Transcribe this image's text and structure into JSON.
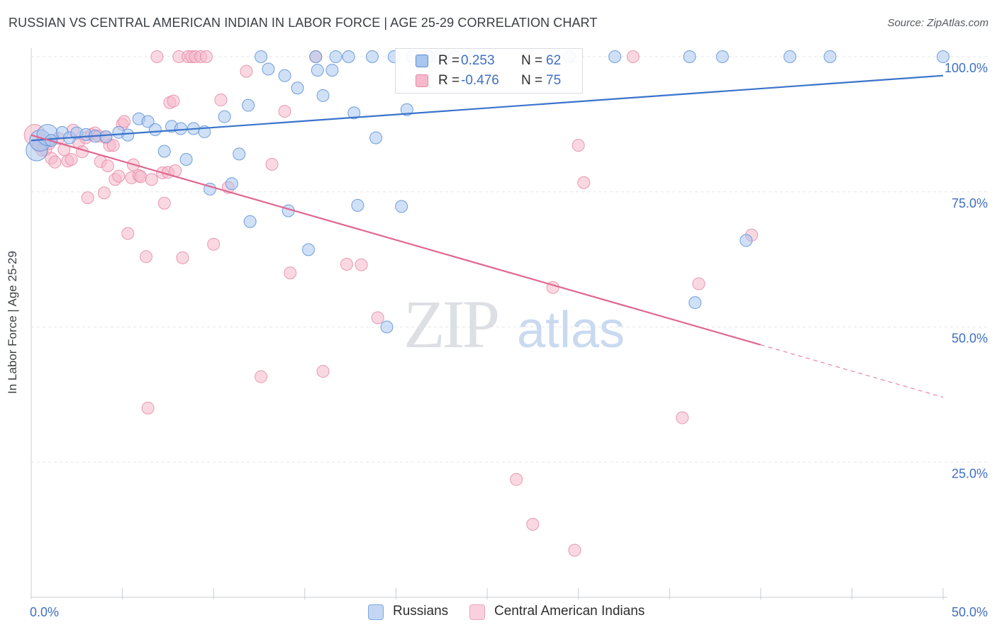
{
  "title": "RUSSIAN VS CENTRAL AMERICAN INDIAN IN LABOR FORCE | AGE 25-29 CORRELATION CHART",
  "source": "Source: ZipAtlas.com",
  "watermark": {
    "zip": "ZIP",
    "atlas": "atlas"
  },
  "colors": {
    "russians_fill": "#a9c6ee",
    "russians_stroke": "#5b8fd6",
    "russians_line": "#3a74cc",
    "cai_fill": "#f6b8cb",
    "cai_stroke": "#e48aa7",
    "cai_line": "#e0668f",
    "tick_label": "#3e6fc4",
    "grid": "#e2e5ea"
  },
  "legend_top": {
    "rows": [
      {
        "r_label": "R =",
        "r_value": "0.253",
        "n_label": "N =",
        "n_value": "62"
      },
      {
        "r_label": "R =",
        "r_value": "-0.476",
        "n_label": "N =",
        "n_value": "75"
      }
    ]
  },
  "legend_bottom": [
    {
      "label": "Russians"
    },
    {
      "label": "Central American Indians"
    }
  ],
  "chart_data": {
    "type": "scatter",
    "title": "RUSSIAN VS CENTRAL AMERICAN INDIAN IN LABOR FORCE | AGE 25-29 CORRELATION CHART",
    "xlabel": "",
    "ylabel": "In Labor Force | Age 25-29",
    "xlim": [
      0,
      50
    ],
    "ylim": [
      0,
      100
    ],
    "x_tick_labels": [
      "0.0%",
      "50.0%"
    ],
    "y_tick_labels": [
      "100.0%",
      "75.0%",
      "50.0%",
      "25.0%"
    ],
    "y_ticks": [
      100,
      75,
      50,
      25
    ],
    "grid": true,
    "legend_position": "bottom",
    "series": [
      {
        "name": "Russians",
        "r": 0.253,
        "n": 62,
        "trend": {
          "x": [
            0,
            50
          ],
          "y": [
            84.5,
            96.5
          ],
          "dashed_from": 50
        },
        "points": [
          {
            "x": 0.3,
            "y": 82.7,
            "s": "l"
          },
          {
            "x": 0.5,
            "y": 84.5,
            "s": "l"
          },
          {
            "x": 0.9,
            "y": 85.5,
            "s": "l"
          },
          {
            "x": 1.1,
            "y": 84.5
          },
          {
            "x": 1.7,
            "y": 86.0
          },
          {
            "x": 2.1,
            "y": 85.0
          },
          {
            "x": 2.5,
            "y": 85.9
          },
          {
            "x": 3.0,
            "y": 85.6
          },
          {
            "x": 3.5,
            "y": 85.3
          },
          {
            "x": 4.1,
            "y": 85.2
          },
          {
            "x": 4.8,
            "y": 86.0
          },
          {
            "x": 5.3,
            "y": 85.5
          },
          {
            "x": 5.9,
            "y": 88.5
          },
          {
            "x": 6.4,
            "y": 88.0
          },
          {
            "x": 6.8,
            "y": 86.5
          },
          {
            "x": 7.3,
            "y": 82.5
          },
          {
            "x": 7.7,
            "y": 87.1
          },
          {
            "x": 8.2,
            "y": 86.7
          },
          {
            "x": 8.5,
            "y": 81.0
          },
          {
            "x": 8.9,
            "y": 86.7
          },
          {
            "x": 9.5,
            "y": 86.1
          },
          {
            "x": 9.8,
            "y": 75.5
          },
          {
            "x": 10.6,
            "y": 88.9
          },
          {
            "x": 11.0,
            "y": 76.5
          },
          {
            "x": 11.4,
            "y": 82.0
          },
          {
            "x": 11.9,
            "y": 91.0
          },
          {
            "x": 12.0,
            "y": 69.5
          },
          {
            "x": 12.6,
            "y": 100
          },
          {
            "x": 13.0,
            "y": 97.7
          },
          {
            "x": 13.9,
            "y": 96.5
          },
          {
            "x": 14.1,
            "y": 71.5
          },
          {
            "x": 14.6,
            "y": 94.2
          },
          {
            "x": 15.2,
            "y": 64.3
          },
          {
            "x": 15.6,
            "y": 100
          },
          {
            "x": 15.7,
            "y": 97.5
          },
          {
            "x": 16.0,
            "y": 92.8
          },
          {
            "x": 16.5,
            "y": 97.5
          },
          {
            "x": 16.7,
            "y": 100
          },
          {
            "x": 17.4,
            "y": 100
          },
          {
            "x": 17.7,
            "y": 89.6
          },
          {
            "x": 17.9,
            "y": 72.5
          },
          {
            "x": 18.7,
            "y": 100
          },
          {
            "x": 18.9,
            "y": 85.0
          },
          {
            "x": 19.5,
            "y": 50.0
          },
          {
            "x": 19.9,
            "y": 100
          },
          {
            "x": 20.3,
            "y": 72.3
          },
          {
            "x": 20.6,
            "y": 90.2
          },
          {
            "x": 20.9,
            "y": 100
          },
          {
            "x": 21.3,
            "y": 95.7
          },
          {
            "x": 21.8,
            "y": 100
          },
          {
            "x": 22.3,
            "y": 100
          },
          {
            "x": 23.2,
            "y": 100
          },
          {
            "x": 24.1,
            "y": 100
          },
          {
            "x": 29.5,
            "y": 100
          },
          {
            "x": 32.0,
            "y": 100
          },
          {
            "x": 36.1,
            "y": 100
          },
          {
            "x": 36.4,
            "y": 54.5
          },
          {
            "x": 37.9,
            "y": 100
          },
          {
            "x": 41.6,
            "y": 100
          },
          {
            "x": 43.8,
            "y": 100
          },
          {
            "x": 39.2,
            "y": 66.0
          },
          {
            "x": 50.0,
            "y": 100
          }
        ]
      },
      {
        "name": "Central American Indians",
        "r": -0.476,
        "n": 75,
        "trend": {
          "x": [
            0,
            50
          ],
          "y": [
            85.5,
            37.0
          ],
          "dashed_from": 40
        },
        "points": [
          {
            "x": 0.2,
            "y": 85.5,
            "s": "l"
          },
          {
            "x": 0.4,
            "y": 83.5
          },
          {
            "x": 0.6,
            "y": 82.7
          },
          {
            "x": 0.8,
            "y": 82.8
          },
          {
            "x": 1.0,
            "y": 84.0
          },
          {
            "x": 1.1,
            "y": 81.2
          },
          {
            "x": 1.3,
            "y": 80.5
          },
          {
            "x": 1.5,
            "y": 84.9
          },
          {
            "x": 1.8,
            "y": 82.8
          },
          {
            "x": 2.0,
            "y": 80.7
          },
          {
            "x": 2.2,
            "y": 81.0
          },
          {
            "x": 2.3,
            "y": 86.4
          },
          {
            "x": 2.6,
            "y": 84.2
          },
          {
            "x": 2.8,
            "y": 82.4
          },
          {
            "x": 3.0,
            "y": 85.0
          },
          {
            "x": 3.1,
            "y": 73.9
          },
          {
            "x": 3.3,
            "y": 85.6
          },
          {
            "x": 3.5,
            "y": 85.9
          },
          {
            "x": 3.7,
            "y": 85.3
          },
          {
            "x": 3.8,
            "y": 80.6
          },
          {
            "x": 4.0,
            "y": 74.8
          },
          {
            "x": 4.1,
            "y": 85.0
          },
          {
            "x": 4.2,
            "y": 79.8
          },
          {
            "x": 4.3,
            "y": 83.6
          },
          {
            "x": 4.5,
            "y": 83.6
          },
          {
            "x": 4.6,
            "y": 77.3
          },
          {
            "x": 4.8,
            "y": 77.9
          },
          {
            "x": 5.0,
            "y": 87.5
          },
          {
            "x": 5.1,
            "y": 88.0
          },
          {
            "x": 5.3,
            "y": 67.3
          },
          {
            "x": 5.5,
            "y": 77.6
          },
          {
            "x": 5.6,
            "y": 80.0
          },
          {
            "x": 5.9,
            "y": 78.0
          },
          {
            "x": 6.0,
            "y": 77.8
          },
          {
            "x": 6.3,
            "y": 63.0
          },
          {
            "x": 6.4,
            "y": 35.0
          },
          {
            "x": 6.6,
            "y": 77.3
          },
          {
            "x": 6.9,
            "y": 100
          },
          {
            "x": 7.2,
            "y": 78.5
          },
          {
            "x": 7.3,
            "y": 72.9
          },
          {
            "x": 7.5,
            "y": 78.6
          },
          {
            "x": 7.6,
            "y": 91.5
          },
          {
            "x": 7.8,
            "y": 91.8
          },
          {
            "x": 7.9,
            "y": 78.9
          },
          {
            "x": 8.1,
            "y": 100
          },
          {
            "x": 8.3,
            "y": 62.8
          },
          {
            "x": 8.6,
            "y": 100
          },
          {
            "x": 8.8,
            "y": 100
          },
          {
            "x": 9.0,
            "y": 100
          },
          {
            "x": 9.3,
            "y": 100
          },
          {
            "x": 9.6,
            "y": 100
          },
          {
            "x": 10.0,
            "y": 65.3
          },
          {
            "x": 10.4,
            "y": 92.0
          },
          {
            "x": 10.8,
            "y": 75.8
          },
          {
            "x": 11.8,
            "y": 97.3
          },
          {
            "x": 12.6,
            "y": 40.8
          },
          {
            "x": 13.2,
            "y": 80.1
          },
          {
            "x": 13.9,
            "y": 89.9
          },
          {
            "x": 14.2,
            "y": 60.0
          },
          {
            "x": 15.6,
            "y": 100
          },
          {
            "x": 16.0,
            "y": 41.8
          },
          {
            "x": 17.3,
            "y": 61.6
          },
          {
            "x": 18.1,
            "y": 61.5
          },
          {
            "x": 19.0,
            "y": 51.7
          },
          {
            "x": 21.5,
            "y": 100
          },
          {
            "x": 26.6,
            "y": 21.8
          },
          {
            "x": 27.5,
            "y": 13.5
          },
          {
            "x": 28.6,
            "y": 57.3
          },
          {
            "x": 29.8,
            "y": 8.7
          },
          {
            "x": 30.0,
            "y": 83.6
          },
          {
            "x": 30.3,
            "y": 76.7
          },
          {
            "x": 33.0,
            "y": 100
          },
          {
            "x": 35.7,
            "y": 33.2
          },
          {
            "x": 36.6,
            "y": 58.0
          },
          {
            "x": 39.5,
            "y": 67.0
          }
        ]
      }
    ]
  }
}
